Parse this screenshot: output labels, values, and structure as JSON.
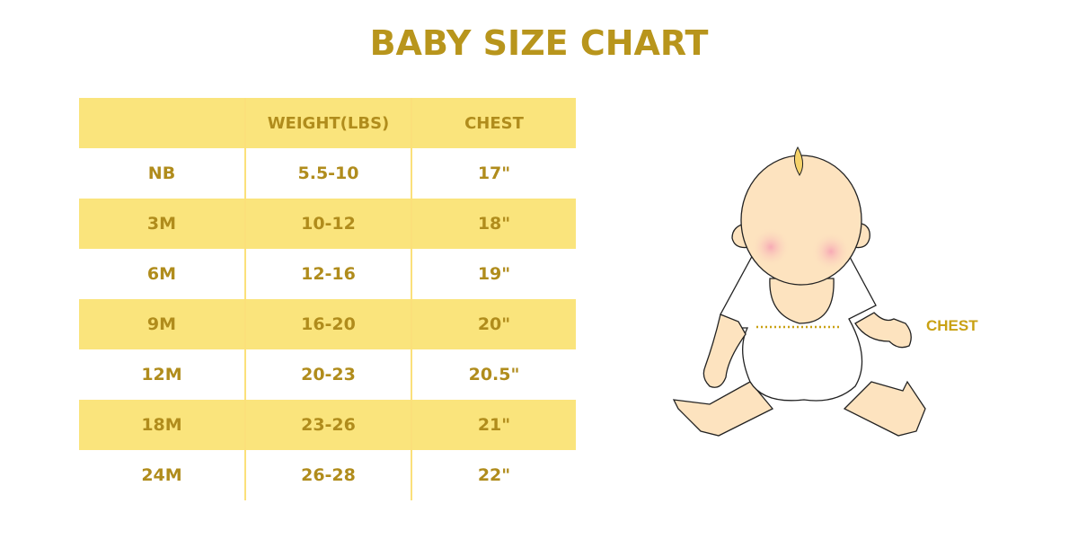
{
  "title": "BABY SIZE CHART",
  "chart_data": {
    "type": "table",
    "title": "BABY SIZE CHART",
    "columns": [
      "",
      "WEIGHT(LBS)",
      "CHEST"
    ],
    "rows": [
      [
        "NB",
        "5.5-10",
        "17\""
      ],
      [
        "3M",
        "10-12",
        "18\""
      ],
      [
        "6M",
        "12-16",
        "19\""
      ],
      [
        "9M",
        "16-20",
        "20\""
      ],
      [
        "12M",
        "20-23",
        "20.5\""
      ],
      [
        "18M",
        "23-26",
        "21\""
      ],
      [
        "24M",
        "26-28",
        "22\""
      ]
    ]
  },
  "illustration": {
    "chest_label": "CHEST"
  },
  "colors": {
    "accent": "#b8951c",
    "stripe": "#fae47c",
    "skin": "#fde3bf",
    "cheek": "#f7b6bd"
  }
}
